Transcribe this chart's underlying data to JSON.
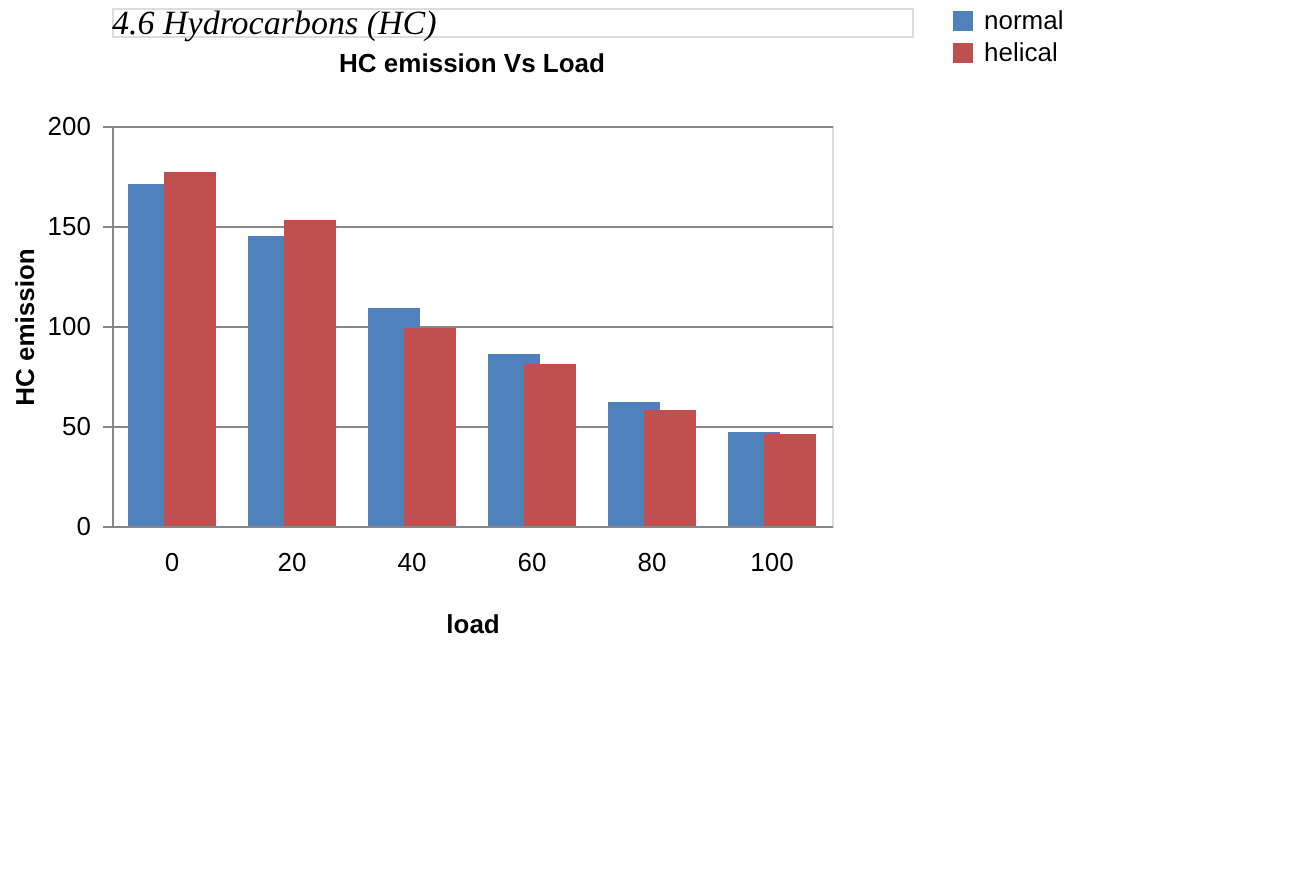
{
  "chart_data": {
    "type": "bar",
    "title": "HC emission Vs Load",
    "xlabel": "load",
    "ylabel": "HC  emission",
    "annotations": [
      "4.6 Hydrocarbons (HC)"
    ],
    "categories": [
      "0",
      "20",
      "40",
      "60",
      "80",
      "100"
    ],
    "series": [
      {
        "name": "normal",
        "color": "#4f81bd",
        "values": [
          171,
          145,
          109,
          86,
          62,
          47
        ]
      },
      {
        "name": "helical",
        "color": "#c0504d",
        "values": [
          177,
          153,
          99,
          81,
          58,
          46
        ]
      }
    ],
    "ylim": [
      0,
      200
    ],
    "yticks": [
      0,
      50,
      100,
      150,
      200
    ],
    "grid": "y",
    "legend": "right"
  }
}
